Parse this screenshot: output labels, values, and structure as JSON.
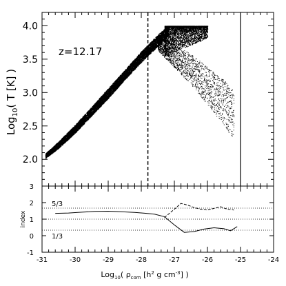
{
  "chart_data": [
    {
      "type": "scatter",
      "annotation": "z=12.17",
      "ylabel_main": "Log",
      "ylabel_sub": "10",
      "ylabel_rest": "( T [K] )",
      "xlim": [
        -31,
        -24
      ],
      "ylim": [
        1.6,
        4.2
      ],
      "yticks": [
        2.0,
        2.5,
        3.0,
        3.5,
        4.0
      ],
      "ytick_labels": [
        "2.0",
        "2.5",
        "3.0",
        "3.5",
        "4.0"
      ],
      "vlines": [
        {
          "x": -27.8,
          "style": "dashed"
        },
        {
          "x": -25.0,
          "style": "solid"
        }
      ],
      "band": {
        "x": [
          -30.9,
          -30.5,
          -30.0,
          -29.5,
          -29.0,
          -28.5,
          -28.0,
          -27.5,
          -27.2
        ],
        "y_low": [
          2.02,
          2.17,
          2.4,
          2.66,
          2.92,
          3.2,
          3.46,
          3.7,
          3.85
        ],
        "y_high": [
          2.09,
          2.27,
          2.52,
          2.79,
          3.07,
          3.34,
          3.62,
          3.87,
          4.0
        ]
      },
      "plateau": {
        "x": [
          -27.3,
          -26.0
        ],
        "y": 4.0
      },
      "tail": {
        "x": [
          -27.5,
          -27.0,
          -26.5,
          -26.0,
          -25.5,
          -25.2
        ],
        "y": [
          3.75,
          3.55,
          3.35,
          3.1,
          2.85,
          2.65
        ]
      }
    },
    {
      "type": "line",
      "xlim": [
        -31,
        -24
      ],
      "ylim": [
        -1,
        3
      ],
      "ylabel": "index",
      "xlabel_main": "Log",
      "xlabel_sub": "10",
      "xlabel_rho": "ρ",
      "xlabel_rho_sub": "com",
      "xlabel_rest": "[h",
      "xlabel_sup1": "2",
      "xlabel_rest2": "g cm",
      "xlabel_sup2": "-3",
      "xlabel_end": "] )",
      "xticks": [
        -31,
        -30,
        -29,
        -28,
        -27,
        -26,
        -25,
        -24
      ],
      "xtick_labels": [
        "-31",
        "-30",
        "-29",
        "-28",
        "-27",
        "-26",
        "-25",
        "-24"
      ],
      "yticks": [
        -1,
        0,
        1,
        2,
        3
      ],
      "ytick_labels": [
        "-1",
        "0",
        "1",
        "2",
        "3"
      ],
      "ref_lines": [
        {
          "y": 1.6667,
          "label": "5/3"
        },
        {
          "y": 1.0,
          "label": ""
        },
        {
          "y": 0.3333,
          "label": "1/3"
        }
      ],
      "series": [
        {
          "style": "solid",
          "x": [
            -30.6,
            -30.2,
            -29.8,
            -29.4,
            -29.0,
            -28.6,
            -28.2,
            -27.9,
            -27.6,
            -27.3,
            -27.0,
            -26.7,
            -26.4,
            -26.1,
            -25.8,
            -25.5,
            -25.3,
            -25.1
          ],
          "y": [
            1.35,
            1.37,
            1.42,
            1.47,
            1.48,
            1.45,
            1.41,
            1.36,
            1.3,
            1.15,
            0.65,
            0.2,
            0.25,
            0.4,
            0.48,
            0.42,
            0.3,
            0.55
          ]
        },
        {
          "style": "dashed",
          "x": [
            -27.3,
            -27.0,
            -26.8,
            -26.6,
            -26.4,
            -26.2,
            -26.0,
            -25.8,
            -25.6,
            -25.4,
            -25.2
          ],
          "y": [
            1.1,
            1.6,
            1.95,
            1.85,
            1.7,
            1.6,
            1.55,
            1.65,
            1.75,
            1.6,
            1.55
          ]
        }
      ]
    }
  ]
}
